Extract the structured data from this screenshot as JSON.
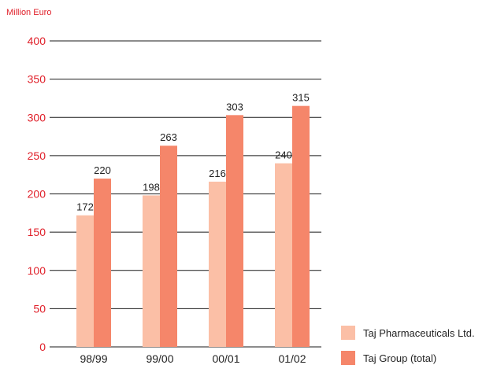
{
  "chart_data": {
    "type": "bar",
    "title": "",
    "ylabel": "Million Euro",
    "xlabel": "",
    "ylim": [
      0,
      400
    ],
    "yticks": [
      0,
      50,
      100,
      150,
      200,
      250,
      300,
      350,
      400
    ],
    "grid": true,
    "legend_placement": "bottom-right",
    "categories": [
      "98/99",
      "99/00",
      "00/01",
      "01/02"
    ],
    "series": [
      {
        "name": "Taj Pharmaceuticals Ltd.",
        "color": "#fbbfa6",
        "values": [
          172,
          198,
          216,
          240
        ]
      },
      {
        "name": "Taj Group (total)",
        "color": "#f5866a",
        "values": [
          220,
          263,
          303,
          315
        ]
      }
    ],
    "axis_color": "#e0202a",
    "text_color": "#222222"
  }
}
